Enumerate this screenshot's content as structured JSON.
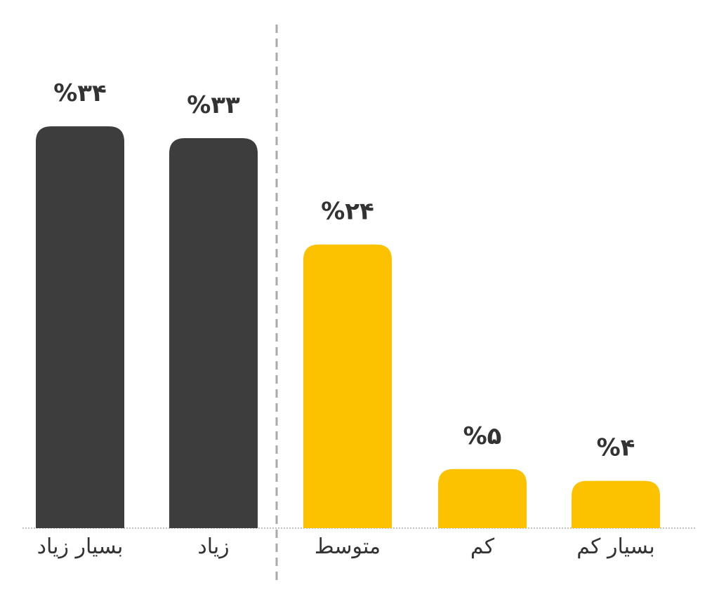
{
  "chart_data": {
    "type": "bar",
    "categories": [
      "بسیار زیاد",
      "زیاد",
      "متوسط",
      "کم",
      "بسیار کم"
    ],
    "values": [
      34,
      33,
      24,
      5,
      4
    ],
    "value_labels": [
      "%۳۴",
      "%۳۳",
      "%۲۴",
      "%۵",
      "%۴"
    ],
    "ylim": [
      0,
      40
    ],
    "colors": {
      "high": "#3d3d3d",
      "low": "#fcc200",
      "baseline": "#aaaaaa",
      "divider": "#aaaaaa"
    },
    "bar_groups": [
      "high",
      "high",
      "low",
      "low",
      "low"
    ],
    "grid": false,
    "legend": "none"
  }
}
